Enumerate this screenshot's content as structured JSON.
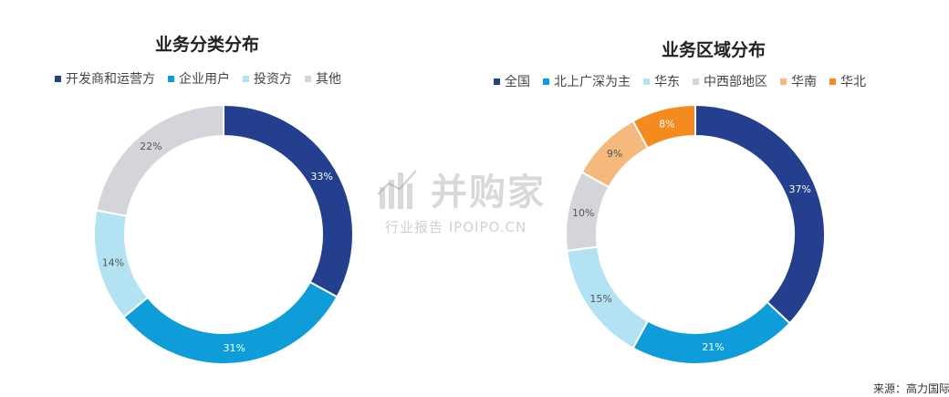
{
  "chart_data": [
    {
      "type": "pie",
      "title": "业务分类分布",
      "categories": [
        "开发商和运营方",
        "企业用户",
        "投资方",
        "其他"
      ],
      "values": [
        33,
        31,
        14,
        22
      ],
      "labels": [
        "33%",
        "31%",
        "14%",
        "22%"
      ],
      "colors": [
        "#253F8F",
        "#0E9DD8",
        "#B3E2F3",
        "#D4D5DA"
      ],
      "label_colors": [
        "#ffffff",
        "#ffffff",
        "#555555",
        "#555555"
      ],
      "legend_position": "top"
    },
    {
      "type": "pie",
      "title": "业务区域分布",
      "categories": [
        "全国",
        "北上广深为主",
        "华东",
        "中西部地区",
        "华南",
        "华北"
      ],
      "values": [
        37,
        21,
        15,
        10,
        9,
        8
      ],
      "labels": [
        "37%",
        "21%",
        "15%",
        "10%",
        "9%",
        "8%"
      ],
      "colors": [
        "#253F8F",
        "#0E9DD8",
        "#B3E2F3",
        "#D4D5DA",
        "#F5B97C",
        "#F38B1F"
      ],
      "label_colors": [
        "#ffffff",
        "#ffffff",
        "#555555",
        "#555555",
        "#555555",
        "#ffffff"
      ],
      "legend_position": "top"
    }
  ],
  "watermark": {
    "main": "并购家",
    "sub": "行业报告 IPOIPO.CN"
  },
  "source": "来源：高力国际"
}
